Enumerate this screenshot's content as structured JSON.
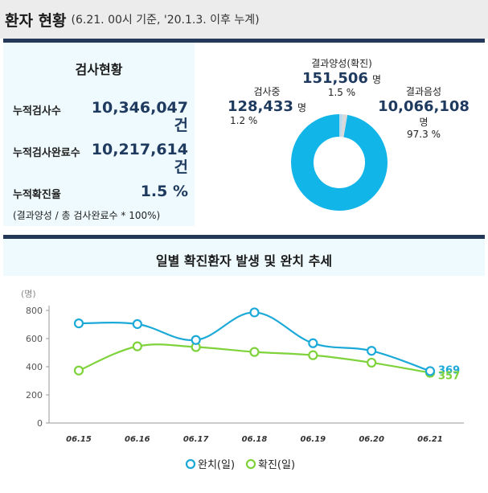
{
  "header": {
    "title": "환자 현황",
    "subtitle": "(6.21. 00시 기준, '20.1.3. 이후 누계)"
  },
  "test_status": {
    "title": "검사현황",
    "rows": [
      {
        "label": "누적검사수",
        "value": "10,346,047",
        "unit": "건"
      },
      {
        "label": "누적검사완료수",
        "value": "10,217,614",
        "unit": "건"
      },
      {
        "label": "누적확진율",
        "value": "1.5 %",
        "unit": ""
      }
    ],
    "note": "(결과양성 / 총 검사완료수 * 100%)"
  },
  "donut": {
    "positive": {
      "name": "결과양성(확진)",
      "value": "151,506",
      "unit": "명",
      "pct": "1.5 %"
    },
    "testing": {
      "name": "검사중",
      "value": "128,433",
      "unit": "명",
      "pct": "1.2 %"
    },
    "negative": {
      "name": "결과음성",
      "value": "10,066,108",
      "unit": "명",
      "pct": "97.3 %"
    },
    "colors": {
      "negative": "#12b5e8",
      "testing": "#b8d9ee",
      "positive": "#d9d9d9"
    }
  },
  "chart_data": {
    "type": "line",
    "title": "일별 확진환자 발생 및 완치 추세",
    "ylabel": "(명)",
    "ylim": [
      0,
      800
    ],
    "yticks": [
      0,
      200,
      400,
      600,
      800
    ],
    "categories": [
      "06.15",
      "06.16",
      "06.17",
      "06.18",
      "06.19",
      "06.20",
      "06.21"
    ],
    "series": [
      {
        "name": "완치(일)",
        "color": "#1ba9d8",
        "values": [
          708,
          703,
          590,
          786,
          567,
          513,
          369
        ]
      },
      {
        "name": "확진(일)",
        "color": "#7ed23a",
        "values": [
          373,
          545,
          540,
          505,
          482,
          429,
          357
        ]
      }
    ],
    "end_labels": [
      "369",
      "357"
    ],
    "legend_position": "bottom",
    "grid": false
  }
}
